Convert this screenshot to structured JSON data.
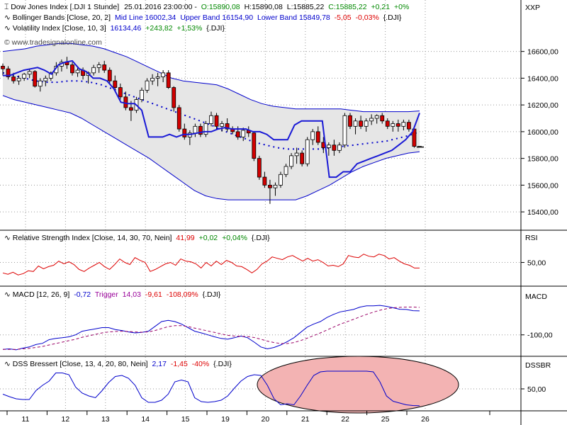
{
  "colors": {
    "background": "#ffffff",
    "grid": "#9a9a9a",
    "up_candle": "#ffffff",
    "down_candle": "#d20000",
    "bollinger": "#0000cc",
    "bollinger_fill": "#e6e6e6",
    "volatility": "#1a1ad6",
    "rsi": "#dd0000",
    "macd": "#0000cc",
    "trigger": "#990066",
    "dss": "#0000cc",
    "ellipse_fill": "#f3b3b3",
    "green": "#008800",
    "red": "#dd0000",
    "blue": "#0000cc",
    "purple": "#990099"
  },
  "panels": {
    "price": {
      "label": "XXP",
      "title": {
        "name": "Dow Jones Index [.DJI   1 Stunde]",
        "time": "25.01.2016 23:00:00 -",
        "o": "O:15890,08",
        "h": "H:15890,08",
        "l": "L:15885,22",
        "c": "C:15885,22",
        "chg": "+0,21",
        "pct": "+0%"
      },
      "bollinger_label": {
        "name": "Bollinger Bands [Close, 20, 2]",
        "mid": "Mid Line 16002,34",
        "upper": "Upper Band 16154,90",
        "lower": "Lower Band 15849,78",
        "chg": "-5,05",
        "pct": "-0,03%",
        "sym": "{.DJI}"
      },
      "volatility_label": {
        "name": "Volatility Index [Close, 10, 3]",
        "value": "16134,46",
        "chg": "+243,82",
        "pct": "+1,53%",
        "sym": "{.DJI}"
      },
      "watermark": "© www.tradesignalonline.com"
    },
    "rsi": {
      "label": "RSI",
      "title": {
        "name": "Relative Strength Index [Close, 14, 30, 70, Nein]",
        "value": "41,99",
        "chg": "+0,02",
        "pct": "+0,04%",
        "sym": "{.DJI}"
      }
    },
    "macd": {
      "label": "MACD",
      "title": {
        "name": "MACD [12, 26, 9]",
        "value": "-0,72",
        "trigger_name": "Trigger",
        "trigger": "14,03",
        "chg": "-9,61",
        "pct": "-108,09%",
        "sym": "{.DJI}"
      }
    },
    "dss": {
      "label": "DSSBR",
      "title": {
        "name": "DSS Bressert [Close, 13, 4, 20, 80, Nein]",
        "value": "2,17",
        "chg": "-1,45",
        "pct": "-40%",
        "sym": "{.DJI}"
      }
    }
  },
  "chart_data": [
    {
      "type": "candlestick",
      "panel": "price",
      "y_ticks": [
        "16600,00",
        "16400,00",
        "16200,00",
        "16000,00",
        "15800,00",
        "15600,00",
        "15400,00"
      ],
      "y_tick_values": [
        16600,
        16400,
        16200,
        16000,
        15800,
        15600,
        15400
      ],
      "ylim": [
        15300,
        16720
      ],
      "x_categories": [
        "11",
        "12",
        "13",
        "14",
        "15",
        "19",
        "20",
        "21",
        "22",
        "25",
        "26"
      ],
      "x_positions": [
        0,
        1,
        2,
        3,
        4,
        5,
        6,
        7,
        8,
        9,
        10
      ],
      "xlim": [
        -0.1,
        11.1
      ],
      "candles_ohlc": [
        [
          16490,
          16510,
          16420,
          16470
        ],
        [
          16470,
          16490,
          16390,
          16410
        ],
        [
          16410,
          16440,
          16360,
          16380
        ],
        [
          16380,
          16420,
          16350,
          16400
        ],
        [
          16400,
          16440,
          16380,
          16430
        ],
        [
          16430,
          16470,
          16400,
          16450
        ],
        [
          16450,
          16460,
          16330,
          16340
        ],
        [
          16340,
          16400,
          16300,
          16380
        ],
        [
          16380,
          16420,
          16340,
          16400
        ],
        [
          16400,
          16450,
          16380,
          16440
        ],
        [
          16440,
          16520,
          16420,
          16490
        ],
        [
          16490,
          16540,
          16450,
          16520
        ],
        [
          16520,
          16560,
          16470,
          16500
        ],
        [
          16500,
          16520,
          16420,
          16440
        ],
        [
          16440,
          16480,
          16410,
          16460
        ],
        [
          16460,
          16480,
          16390,
          16420
        ],
        [
          16420,
          16450,
          16360,
          16440
        ],
        [
          16440,
          16500,
          16420,
          16480
        ],
        [
          16480,
          16520,
          16440,
          16500
        ],
        [
          16500,
          16530,
          16440,
          16460
        ],
        [
          16460,
          16480,
          16360,
          16380
        ],
        [
          16380,
          16420,
          16310,
          16330
        ],
        [
          16330,
          16360,
          16240,
          16260
        ],
        [
          16260,
          16300,
          16160,
          16180
        ],
        [
          16180,
          16230,
          16080,
          16160
        ],
        [
          16160,
          16260,
          16140,
          16240
        ],
        [
          16240,
          16330,
          16220,
          16310
        ],
        [
          16310,
          16400,
          16290,
          16380
        ],
        [
          16380,
          16430,
          16350,
          16400
        ],
        [
          16400,
          16440,
          16340,
          16410
        ],
        [
          16410,
          16460,
          16370,
          16440
        ],
        [
          16440,
          16460,
          16320,
          16330
        ],
        [
          16330,
          16340,
          16150,
          16180
        ],
        [
          16180,
          16200,
          16000,
          16020
        ],
        [
          16020,
          16060,
          15940,
          15960
        ],
        [
          15960,
          16010,
          15900,
          15990
        ],
        [
          15990,
          16060,
          15960,
          16040
        ],
        [
          16040,
          16060,
          15960,
          15980
        ],
        [
          15980,
          16080,
          15960,
          16060
        ],
        [
          16060,
          16150,
          16040,
          16120
        ],
        [
          16120,
          16140,
          16020,
          16040
        ],
        [
          16040,
          16080,
          16000,
          16060
        ],
        [
          16060,
          16100,
          16000,
          16020
        ],
        [
          16020,
          16040,
          15980,
          16000
        ],
        [
          16000,
          16040,
          15940,
          15960
        ],
        [
          15960,
          16030,
          15930,
          16010
        ],
        [
          16010,
          16040,
          15960,
          15990
        ],
        [
          15990,
          16000,
          15780,
          15800
        ],
        [
          15800,
          15820,
          15640,
          15660
        ],
        [
          15660,
          15700,
          15580,
          15600
        ],
        [
          15600,
          15640,
          15460,
          15580
        ],
        [
          15580,
          15620,
          15520,
          15600
        ],
        [
          15600,
          15700,
          15580,
          15680
        ],
        [
          15680,
          15760,
          15660,
          15740
        ],
        [
          15740,
          15840,
          15720,
          15820
        ],
        [
          15820,
          15880,
          15760,
          15840
        ],
        [
          15840,
          15860,
          15740,
          15760
        ],
        [
          15760,
          15960,
          15740,
          15940
        ],
        [
          15940,
          16020,
          15900,
          16000
        ],
        [
          16000,
          16040,
          15900,
          15920
        ],
        [
          15920,
          15960,
          15840,
          15880
        ],
        [
          15880,
          15920,
          15820,
          15900
        ],
        [
          15900,
          15940,
          15820,
          15860
        ],
        [
          15860,
          15920,
          15840,
          15900
        ],
        [
          15900,
          16140,
          15880,
          16120
        ],
        [
          16120,
          16140,
          16020,
          16040
        ],
        [
          16040,
          16100,
          15980,
          16080
        ],
        [
          16080,
          16120,
          16020,
          16040
        ],
        [
          16040,
          16100,
          16000,
          16080
        ],
        [
          16080,
          16130,
          16050,
          16100
        ],
        [
          16100,
          16130,
          16060,
          16120
        ],
        [
          16120,
          16140,
          16060,
          16080
        ],
        [
          16080,
          16100,
          16020,
          16040
        ],
        [
          16040,
          16080,
          16000,
          16060
        ],
        [
          16060,
          16090,
          16000,
          16040
        ],
        [
          16040,
          16090,
          16010,
          16070
        ],
        [
          16070,
          16090,
          16000,
          16020
        ],
        [
          16020,
          16040,
          15880,
          15890
        ],
        [
          15890,
          15890,
          15885,
          15885
        ]
      ],
      "bollinger_upper": [
        16600,
        16610,
        16620,
        16640,
        16650,
        16660,
        16660,
        16650,
        16640,
        16620,
        16590,
        16560,
        16520,
        16480,
        16440,
        16400,
        16380,
        16370,
        16360,
        16350,
        16320,
        16280,
        16240,
        16210,
        16190,
        16180,
        16170,
        16170,
        16170,
        16170,
        16170,
        16160,
        16150,
        16150,
        16150,
        16150,
        16150,
        16155
      ],
      "bollinger_lower": [
        16270,
        16240,
        16220,
        16200,
        16180,
        16160,
        16140,
        16100,
        16050,
        16000,
        15950,
        15900,
        15850,
        15800,
        15740,
        15680,
        15620,
        15560,
        15520,
        15500,
        15490,
        15490,
        15490,
        15490,
        15490,
        15490,
        15490,
        15520,
        15560,
        15600,
        15650,
        15700,
        15740,
        15770,
        15800,
        15820,
        15840,
        15850
      ],
      "bollinger_mid": [
        16440,
        16420,
        16400,
        16380,
        16370,
        16370,
        16380,
        16380,
        16370,
        16350,
        16320,
        16290,
        16260,
        16230,
        16200,
        16170,
        16140,
        16110,
        16080,
        16050,
        16010,
        15980,
        15950,
        15920,
        15900,
        15880,
        15870,
        15870,
        15870,
        15870,
        15880,
        15890,
        15900,
        15910,
        15920,
        15930,
        15950,
        15970,
        16000
      ],
      "volatility": [
        16420,
        16420,
        16440,
        16460,
        16470,
        16480,
        16460,
        16430,
        16500,
        16520,
        16530,
        16470,
        16450,
        16400,
        16400,
        16380,
        16320,
        16220,
        16210,
        16210,
        16160,
        15960,
        15960,
        15960,
        15980,
        15960,
        15980,
        15980,
        15990,
        16000,
        16000,
        16020,
        16030,
        16020,
        16020,
        16020,
        16000,
        16000,
        15980,
        15940,
        15940,
        15940,
        16050,
        16080,
        16080,
        16080,
        16080,
        15660,
        15660,
        15700,
        15700,
        15760,
        15780,
        15800,
        15820,
        15840,
        15860,
        15900,
        15940,
        16000,
        16140
      ]
    },
    {
      "type": "line",
      "panel": "rsi",
      "y_ticks": [
        "50,00"
      ],
      "y_tick_values": [
        50
      ],
      "ylim": [
        20,
        75
      ],
      "series": [
        {
          "values": [
            35,
            33,
            36,
            32,
            34,
            38,
            37,
            45,
            41,
            44,
            46,
            52,
            48,
            51,
            47,
            40,
            37,
            42,
            46,
            50,
            44,
            40,
            47,
            55,
            50,
            47,
            57,
            53,
            50,
            37,
            40,
            44,
            48,
            50,
            46,
            55,
            52,
            51,
            48,
            42,
            50,
            45,
            52,
            47,
            53,
            50,
            45,
            44,
            40,
            35,
            40,
            48,
            52,
            58,
            56,
            54,
            58,
            60,
            56,
            52,
            56,
            52,
            54,
            50,
            45,
            46,
            44,
            48,
            60,
            58,
            57,
            62,
            59,
            58,
            62,
            60,
            55,
            57,
            52,
            48,
            46,
            42,
            41.99
          ]
        }
      ]
    },
    {
      "type": "line",
      "panel": "macd",
      "y_ticks": [
        "-100,00"
      ],
      "y_tick_values": [
        -100
      ],
      "ylim": [
        -180,
        40
      ],
      "series": [
        {
          "values": [
            -160,
            -158,
            -162,
            -155,
            -150,
            -140,
            -135,
            -120,
            -115,
            -112,
            -108,
            -100,
            -85,
            -80,
            -75,
            -70,
            -70,
            -78,
            -82,
            -88,
            -92,
            -90,
            -85,
            -65,
            -45,
            -40,
            -45,
            -55,
            -70,
            -85,
            -92,
            -100,
            -108,
            -115,
            -118,
            -112,
            -105,
            -112,
            -130,
            -150,
            -158,
            -152,
            -142,
            -128,
            -112,
            -90,
            -68,
            -55,
            -45,
            -28,
            -15,
            -5,
            0,
            5,
            15,
            20,
            20,
            22,
            18,
            12,
            6,
            5,
            0,
            -0.72
          ]
        },
        {
          "values": [
            -160,
            -160,
            -160,
            -158,
            -156,
            -152,
            -148,
            -142,
            -136,
            -130,
            -124,
            -118,
            -110,
            -104,
            -98,
            -92,
            -88,
            -86,
            -85,
            -86,
            -88,
            -89,
            -88,
            -82,
            -74,
            -66,
            -62,
            -62,
            -66,
            -72,
            -78,
            -84,
            -90,
            -96,
            -102,
            -105,
            -106,
            -107,
            -111,
            -118,
            -126,
            -132,
            -136,
            -136,
            -132,
            -124,
            -114,
            -103,
            -92,
            -80,
            -68,
            -56,
            -46,
            -36,
            -25,
            -15,
            -6,
            2,
            8,
            12,
            14,
            15,
            15,
            14.03
          ]
        }
      ]
    },
    {
      "type": "line",
      "panel": "dss",
      "y_ticks": [
        "50,00"
      ],
      "y_tick_values": [
        50
      ],
      "ylim": [
        -8,
        108
      ],
      "highlight": "ellipse",
      "series": [
        {
          "values": [
            35,
            28,
            22,
            20,
            20,
            45,
            60,
            72,
            95,
            95,
            90,
            55,
            38,
            30,
            25,
            45,
            68,
            85,
            88,
            80,
            60,
            25,
            12,
            12,
            18,
            35,
            70,
            75,
            70,
            25,
            14,
            12,
            14,
            18,
            30,
            52,
            72,
            85,
            90,
            88,
            60,
            22,
            5,
            8,
            5,
            30,
            60,
            88,
            98,
            100,
            100,
            100,
            100,
            100,
            100,
            100,
            98,
            70,
            30,
            15,
            10,
            5,
            3,
            2.17
          ]
        }
      ]
    }
  ]
}
